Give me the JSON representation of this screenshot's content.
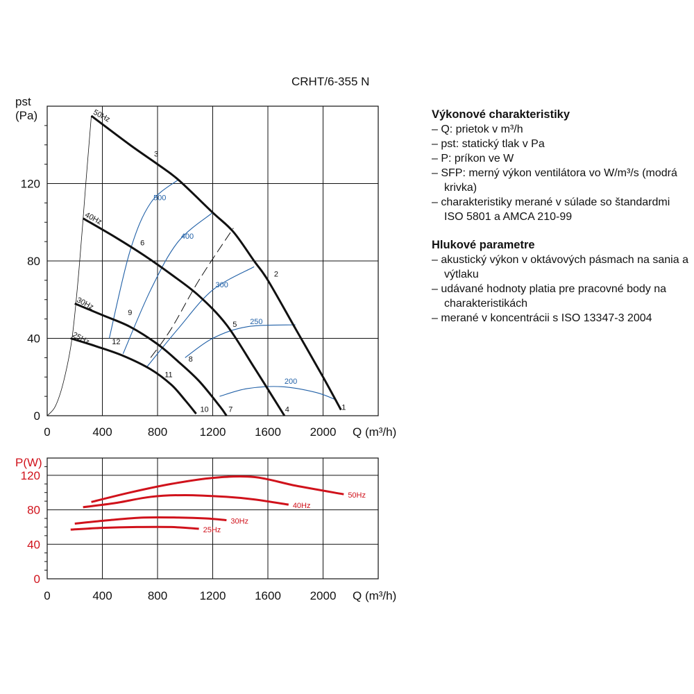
{
  "title": "CRHT/6-355 N",
  "legend": {
    "heading1": "Výkonové charakteristiky",
    "items1": [
      "– Q: prietok v m³/h",
      "– pst: statický tlak v Pa",
      "– P: príkon ve W",
      "– SFP: merný výkon ventilátora vo W/m³/s (modrá krivka)",
      "– charakteristiky merané v súlade so štandardmi ISO 5801 a AMCA 210-99"
    ],
    "heading2": "Hlukové parametre",
    "items2": [
      "– akustický výkon v oktávových pásmach na sania a výtlaku",
      "– udávané hodnoty platia pre pracovné body na charakteristikách",
      "– merané v koncentrácii s ISO 13347-3 2004"
    ]
  },
  "colors": {
    "curve": "#111111",
    "sfp": "#1f5fa6",
    "power": "#d0121b"
  },
  "chart_data": [
    {
      "type": "line",
      "title": "",
      "ylabel_main": "pst",
      "ylabel_unit": "(Pa)",
      "xlabel": "Q (m³/h)",
      "xlim": [
        0,
        2400
      ],
      "ylim": [
        0,
        160
      ],
      "xticks": [
        "0",
        "400",
        "800",
        "1200",
        "1600",
        "2000"
      ],
      "yticks": [
        "0",
        "40",
        "80",
        "120"
      ],
      "grid": true,
      "series": [
        {
          "name": "50Hz",
          "x": [
            320,
            600,
            800,
            950,
            1200,
            1350,
            1500,
            1600,
            1800,
            2000,
            2130
          ],
          "y": [
            155,
            140,
            130,
            122,
            105,
            95,
            80,
            70,
            45,
            20,
            3
          ]
        },
        {
          "name": "40Hz",
          "x": [
            260,
            500,
            700,
            900,
            1100,
            1300,
            1500,
            1650,
            1720
          ],
          "y": [
            102,
            92,
            83,
            73,
            62,
            47,
            25,
            8,
            0
          ]
        },
        {
          "name": "30Hz",
          "x": [
            200,
            400,
            600,
            800,
            950,
            1100,
            1250,
            1300
          ],
          "y": [
            58,
            52,
            46,
            37,
            28,
            18,
            5,
            0
          ]
        },
        {
          "name": "25Hz",
          "x": [
            170,
            350,
            550,
            750,
            900,
            1000,
            1080
          ],
          "y": [
            40,
            36,
            31,
            24,
            16,
            8,
            1
          ]
        },
        {
          "name": "",
          "x": [
            0,
            60,
            120,
            180,
            230,
            280,
            320
          ],
          "y": [
            0,
            5,
            18,
            40,
            75,
            120,
            155
          ]
        }
      ],
      "sfp_curves": [
        {
          "label": "500",
          "x": [
            450,
            600,
            750,
            950
          ],
          "y": [
            40,
            85,
            110,
            122
          ]
        },
        {
          "label": "400",
          "x": [
            550,
            750,
            950,
            1200
          ],
          "y": [
            32,
            65,
            90,
            105
          ]
        },
        {
          "label": "300",
          "x": [
            720,
            950,
            1200,
            1500
          ],
          "y": [
            25,
            45,
            65,
            77
          ]
        },
        {
          "label": "250",
          "x": [
            1000,
            1200,
            1450,
            1800
          ],
          "y": [
            30,
            40,
            46,
            47
          ]
        },
        {
          "label": "200",
          "x": [
            1250,
            1450,
            1700,
            1950,
            2100
          ],
          "y": [
            10,
            14,
            15,
            12,
            8
          ]
        }
      ],
      "system_curve": {
        "x": [
          750,
          900,
          1100,
          1350
        ],
        "y": [
          30,
          45,
          70,
          97
        ]
      },
      "points": [
        {
          "label": "1",
          "x": 2150,
          "y": 3
        },
        {
          "label": "2",
          "x": 1660,
          "y": 72
        },
        {
          "label": "3",
          "x": 790,
          "y": 134
        },
        {
          "label": "4",
          "x": 1740,
          "y": 2
        },
        {
          "label": "5",
          "x": 1360,
          "y": 46
        },
        {
          "label": "6",
          "x": 690,
          "y": 88
        },
        {
          "label": "7",
          "x": 1330,
          "y": 2
        },
        {
          "label": "8",
          "x": 1040,
          "y": 28
        },
        {
          "label": "9",
          "x": 600,
          "y": 52
        },
        {
          "label": "10",
          "x": 1140,
          "y": 2
        },
        {
          "label": "11",
          "x": 880,
          "y": 20
        },
        {
          "label": "12",
          "x": 500,
          "y": 37
        }
      ]
    },
    {
      "type": "line",
      "title": "",
      "ylabel": "P(W)",
      "xlabel": "Q (m³/h)",
      "xlim": [
        0,
        2400
      ],
      "ylim": [
        0,
        140
      ],
      "xticks": [
        "0",
        "400",
        "800",
        "1200",
        "1600",
        "2000"
      ],
      "yticks": [
        "0",
        "40",
        "80",
        "120"
      ],
      "grid": true,
      "series": [
        {
          "name": "50Hz",
          "x": [
            320,
            600,
            900,
            1200,
            1500,
            1800,
            2150
          ],
          "y": [
            89,
            100,
            110,
            117,
            118,
            108,
            98
          ]
        },
        {
          "name": "40Hz",
          "x": [
            260,
            500,
            750,
            1000,
            1300,
            1500,
            1750
          ],
          "y": [
            83,
            88,
            95,
            97,
            95,
            92,
            86
          ]
        },
        {
          "name": "30Hz",
          "x": [
            200,
            450,
            700,
            950,
            1150,
            1300
          ],
          "y": [
            64,
            68,
            71,
            71,
            70,
            68
          ]
        },
        {
          "name": "25Hz",
          "x": [
            170,
            400,
            650,
            900,
            1100
          ],
          "y": [
            57,
            59,
            60,
            60,
            58
          ]
        }
      ]
    }
  ]
}
